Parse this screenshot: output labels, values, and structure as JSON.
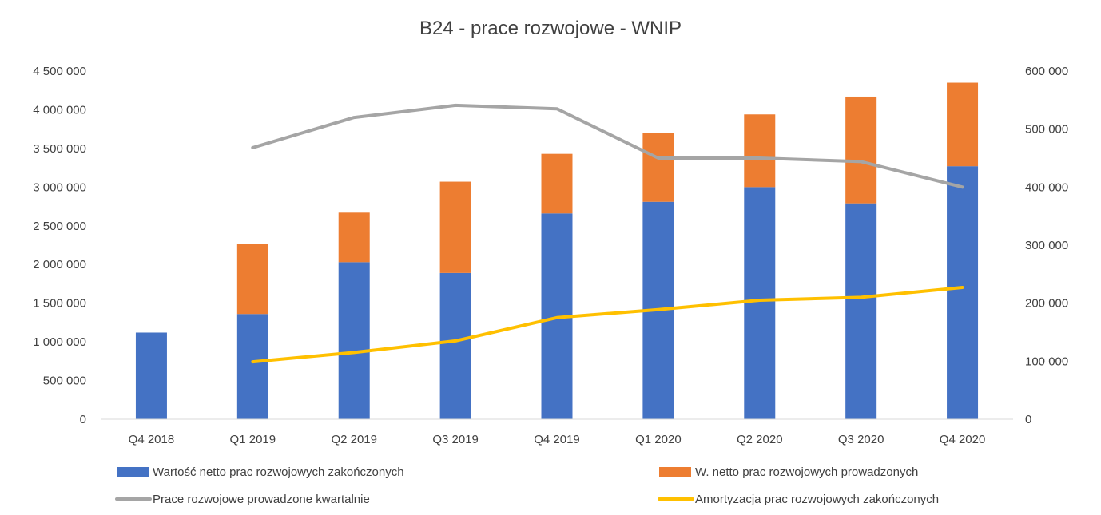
{
  "chart_data": {
    "type": "bar",
    "title": "B24 - prace rozwojowe - WNIP",
    "categories": [
      "Q4 2018",
      "Q1 2019",
      "Q2 2019",
      "Q3 2019",
      "Q4 2019",
      "Q1 2020",
      "Q2 2020",
      "Q3 2020",
      "Q4 2020"
    ],
    "y_left": {
      "range": [
        0,
        4500000
      ],
      "ticks": [
        "0",
        "500 000",
        "1 000 000",
        "1 500 000",
        "2 000 000",
        "2 500 000",
        "3 000 000",
        "3 500 000",
        "4 000 000",
        "4 500 000"
      ]
    },
    "y_right": {
      "range": [
        0,
        600000
      ],
      "ticks": [
        "0",
        "100 000",
        "200 000",
        "300 000",
        "400 000",
        "500 000",
        "600 000"
      ]
    },
    "series": [
      {
        "name": "Wartość netto prac rozwojowych zakończonych",
        "type": "bar",
        "stacked": true,
        "axis": "left",
        "color": "#4472C4",
        "values": [
          1120000,
          1360000,
          2030000,
          1890000,
          2660000,
          2810000,
          3000000,
          2790000,
          3270000
        ]
      },
      {
        "name": "W. netto prac rozwojowych prowadzonych",
        "type": "bar",
        "stacked": true,
        "axis": "left",
        "color": "#ED7D31",
        "values": [
          0,
          910000,
          640000,
          1180000,
          770000,
          890000,
          940000,
          1380000,
          1080000
        ]
      },
      {
        "name": "Prace rozwojowe prowadzone kwartalnie",
        "type": "line",
        "axis": "right",
        "color": "#A5A5A5",
        "values": [
          null,
          468000,
          520000,
          541000,
          535000,
          450000,
          450000,
          444000,
          400000
        ]
      },
      {
        "name": "Amortyzacja prac rozwojowych zakończonych",
        "type": "line",
        "axis": "right",
        "color": "#FFC000",
        "values": [
          null,
          99000,
          115000,
          135000,
          175000,
          189000,
          205000,
          210000,
          227000
        ]
      }
    ],
    "legend_position": "bottom",
    "grid": false
  }
}
